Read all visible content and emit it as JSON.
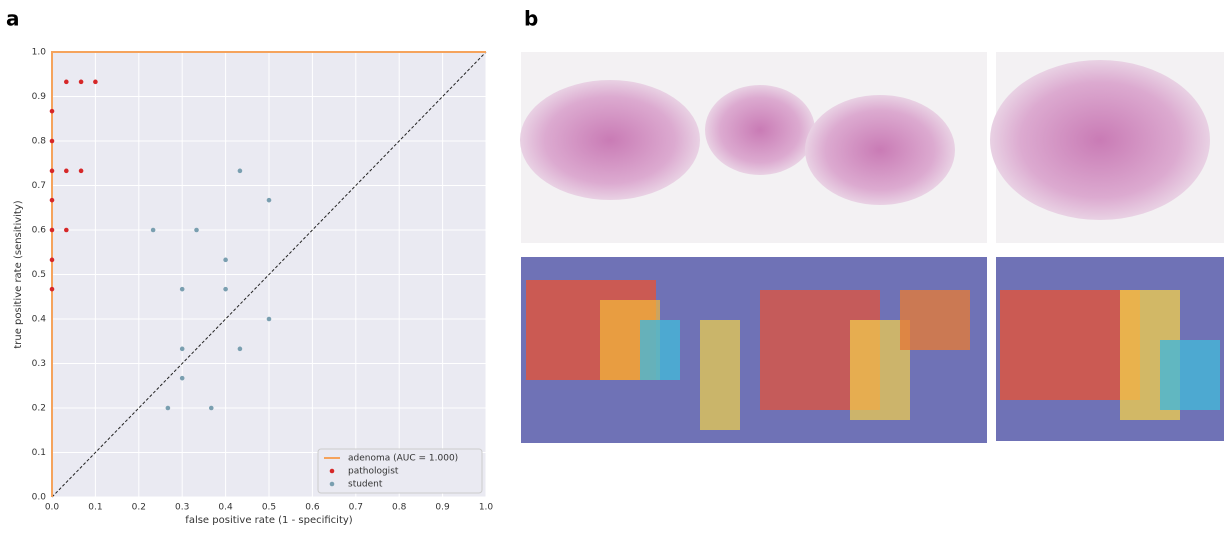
{
  "panels": [
    "a",
    "b"
  ],
  "chart_data": {
    "type": "scatter",
    "xlabel": "false positive rate (1 - specificity)",
    "ylabel": "true positive rate (sensitivity)",
    "xlim": [
      0,
      1
    ],
    "ylim": [
      0,
      1
    ],
    "xticks": [
      {
        "value": 0,
        "label": "0.0"
      },
      {
        "value": 0.1,
        "label": "0.1"
      },
      {
        "value": 0.2,
        "label": "0.2"
      },
      {
        "value": 0.3,
        "label": "0.3"
      },
      {
        "value": 0.4,
        "label": "0.4"
      },
      {
        "value": 0.5,
        "label": "0.5"
      },
      {
        "value": 0.6,
        "label": "0.6"
      },
      {
        "value": 0.7,
        "label": "0.7"
      },
      {
        "value": 0.8,
        "label": "0.8"
      },
      {
        "value": 0.9,
        "label": "0.9"
      },
      {
        "value": 1,
        "label": "1.0"
      }
    ],
    "yticks": [
      {
        "value": 0,
        "label": "0.0"
      },
      {
        "value": 0.1,
        "label": "0.1"
      },
      {
        "value": 0.2,
        "label": "0.2"
      },
      {
        "value": 0.3,
        "label": "0.3"
      },
      {
        "value": 0.4,
        "label": "0.4"
      },
      {
        "value": 0.5,
        "label": "0.5"
      },
      {
        "value": 0.6,
        "label": "0.6"
      },
      {
        "value": 0.7,
        "label": "0.7"
      },
      {
        "value": 0.8,
        "label": "0.8"
      },
      {
        "value": 0.9,
        "label": "0.9"
      },
      {
        "value": 1,
        "label": "1.0"
      }
    ],
    "grid": true,
    "legend": "lower right",
    "series": [
      {
        "name": "adenoma (AUC = 1.000)",
        "type": "line",
        "color": "#f5a35c",
        "x": [
          0,
          0,
          1
        ],
        "values": [
          0,
          1,
          1
        ]
      },
      {
        "name": "pathologist",
        "type": "scatter",
        "color": "#d62728",
        "x": [
          0,
          0,
          0,
          0,
          0,
          0,
          0,
          0.033,
          0.067,
          0.1,
          0.033,
          0.067,
          0.033
        ],
        "values": [
          0.867,
          0.8,
          0.733,
          0.667,
          0.6,
          0.533,
          0.467,
          0.933,
          0.933,
          0.933,
          0.733,
          0.733,
          0.6
        ]
      },
      {
        "name": "student",
        "type": "scatter",
        "color": "#7a9fb0",
        "x": [
          0.233,
          0.333,
          0.433,
          0.5,
          0.4,
          0.4,
          0.3,
          0.5,
          0.3,
          0.433,
          0.3,
          0.267,
          0.367
        ],
        "values": [
          0.6,
          0.6,
          0.733,
          0.667,
          0.533,
          0.467,
          0.467,
          0.4,
          0.333,
          0.333,
          0.267,
          0.2,
          0.2
        ]
      }
    ]
  }
}
